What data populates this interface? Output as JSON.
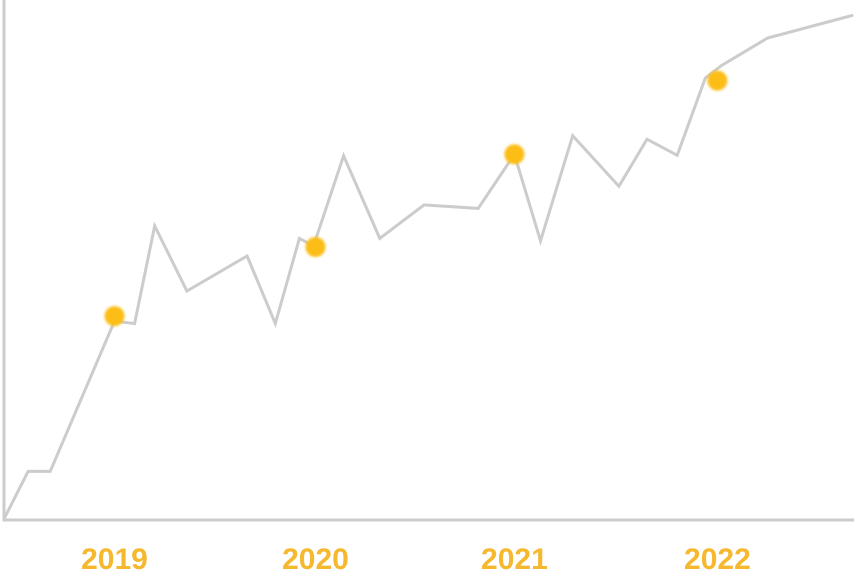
{
  "chart_data": {
    "type": "line",
    "title": "",
    "xlabel": "",
    "ylabel": "",
    "x_tick_labels": [
      "2019",
      "2020",
      "2021",
      "2022"
    ],
    "xlim": [
      2018.45,
      2022.67
    ],
    "ylim": [
      0,
      100
    ],
    "grid": false,
    "legend": "none",
    "series": [
      {
        "x": [
          2018.45,
          2018.57,
          2018.68,
          2019.0,
          2019.1,
          2019.2,
          2019.36,
          2019.66,
          2019.8,
          2019.92,
          2019.99,
          2020.14,
          2020.32,
          2020.54,
          2020.81,
          2020.99,
          2021.12,
          2021.28,
          2021.51,
          2021.65,
          2021.8,
          2021.94,
          2022.02,
          2022.25,
          2022.67
        ],
        "y": [
          0,
          9.5,
          9.5,
          39.5,
          39,
          58.5,
          45.5,
          52.5,
          39,
          56,
          54.5,
          72.5,
          56,
          62.7,
          62,
          72.8,
          55.5,
          76.5,
          66.4,
          75.8,
          72.6,
          88,
          90.5,
          96,
          100.5
        ]
      }
    ],
    "highlight_points": [
      {
        "label": "2019",
        "x": 2019.0,
        "y": 40.5
      },
      {
        "label": "2020",
        "x": 2020.0,
        "y": 54.3
      },
      {
        "label": "2021",
        "x": 2020.99,
        "y": 72.8
      },
      {
        "label": "2022",
        "x": 2022.0,
        "y": 87.5
      }
    ],
    "colors": {
      "line": "#cccccc",
      "axis": "#cccccc",
      "highlight": "#fcbd19",
      "labels": "#f5b82e"
    }
  }
}
